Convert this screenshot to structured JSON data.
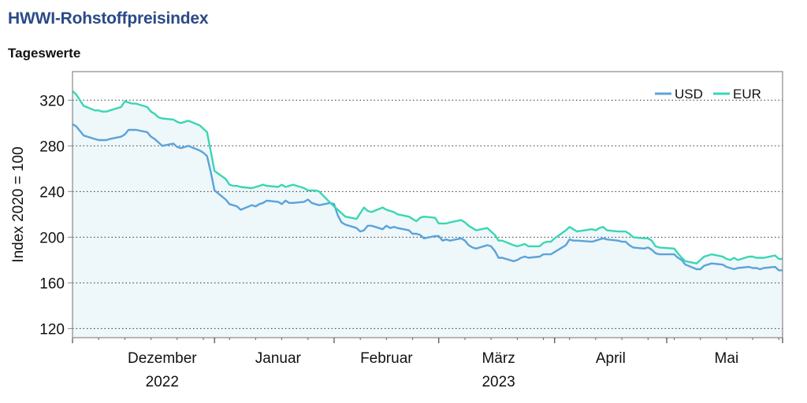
{
  "title": "HWWI-Rohstoffpreisindex",
  "subtitle": "Tageswerte",
  "colors": {
    "usd": "#5ba3d9",
    "eur": "#3ad6b3",
    "area": "#eef7fa",
    "grid": "#333333",
    "frame": "#888888"
  },
  "chart_data": {
    "type": "line",
    "ylabel": "Index 2020 = 100",
    "ylim": [
      112,
      345
    ],
    "yticks": [
      120,
      160,
      200,
      240,
      280,
      320
    ],
    "grid": "horizontal dotted",
    "legend_position": "top-right",
    "x_range": [
      "2022-11-22",
      "2023-05-31"
    ],
    "month_labels": [
      {
        "label": "Dezember",
        "center": "2022-12-16"
      },
      {
        "label": "Januar",
        "center": "2023-01-16"
      },
      {
        "label": "Februar",
        "center": "2023-02-14"
      },
      {
        "label": "März",
        "center": "2023-03-16"
      },
      {
        "label": "April",
        "center": "2023-04-15"
      },
      {
        "label": "Mai",
        "center": "2023-05-16"
      }
    ],
    "year_labels": [
      {
        "label": "2022",
        "center": "2022-12-16"
      },
      {
        "label": "2023",
        "center": "2023-03-16"
      }
    ],
    "tick_dates": [
      "2022-11-22",
      "2022-12-30",
      "2023-01-31",
      "2023-02-28",
      "2023-03-31",
      "2023-04-30",
      "2023-05-31"
    ],
    "series": [
      {
        "name": "USD",
        "points": [
          [
            "2022-11-22",
            299
          ],
          [
            "2022-11-23",
            297
          ],
          [
            "2022-11-24",
            293
          ],
          [
            "2022-11-25",
            289
          ],
          [
            "2022-11-28",
            286
          ],
          [
            "2022-11-29",
            285
          ],
          [
            "2022-11-30",
            285
          ],
          [
            "2022-12-01",
            285
          ],
          [
            "2022-12-02",
            286
          ],
          [
            "2022-12-05",
            288
          ],
          [
            "2022-12-06",
            290
          ],
          [
            "2022-12-07",
            294
          ],
          [
            "2022-12-08",
            294
          ],
          [
            "2022-12-09",
            294
          ],
          [
            "2022-12-12",
            292
          ],
          [
            "2022-12-13",
            288
          ],
          [
            "2022-12-14",
            286
          ],
          [
            "2022-12-15",
            283
          ],
          [
            "2022-12-16",
            280
          ],
          [
            "2022-12-19",
            282
          ],
          [
            "2022-12-20",
            279
          ],
          [
            "2022-12-21",
            278
          ],
          [
            "2022-12-22",
            279
          ],
          [
            "2022-12-23",
            280
          ],
          [
            "2022-12-26",
            276
          ],
          [
            "2022-12-27",
            274
          ],
          [
            "2022-12-28",
            271
          ],
          [
            "2022-12-29",
            257
          ],
          [
            "2022-12-30",
            241
          ],
          [
            "2023-01-02",
            233
          ],
          [
            "2023-01-03",
            229
          ],
          [
            "2023-01-04",
            228
          ],
          [
            "2023-01-05",
            227
          ],
          [
            "2023-01-06",
            224
          ],
          [
            "2023-01-09",
            228
          ],
          [
            "2023-01-10",
            227
          ],
          [
            "2023-01-11",
            229
          ],
          [
            "2023-01-12",
            230
          ],
          [
            "2023-01-13",
            232
          ],
          [
            "2023-01-16",
            231
          ],
          [
            "2023-01-17",
            229
          ],
          [
            "2023-01-18",
            232
          ],
          [
            "2023-01-19",
            230
          ],
          [
            "2023-01-20",
            230
          ],
          [
            "2023-01-23",
            231
          ],
          [
            "2023-01-24",
            233
          ],
          [
            "2023-01-25",
            230
          ],
          [
            "2023-01-26",
            229
          ],
          [
            "2023-01-27",
            228
          ],
          [
            "2023-01-30",
            230
          ],
          [
            "2023-01-31",
            229
          ],
          [
            "2023-02-01",
            219
          ],
          [
            "2023-02-02",
            213
          ],
          [
            "2023-02-03",
            211
          ],
          [
            "2023-02-06",
            208
          ],
          [
            "2023-02-07",
            205
          ],
          [
            "2023-02-08",
            206
          ],
          [
            "2023-02-09",
            210
          ],
          [
            "2023-02-10",
            210
          ],
          [
            "2023-02-13",
            207
          ],
          [
            "2023-02-14",
            210
          ],
          [
            "2023-02-15",
            208
          ],
          [
            "2023-02-16",
            209
          ],
          [
            "2023-02-17",
            208
          ],
          [
            "2023-02-20",
            206
          ],
          [
            "2023-02-21",
            203
          ],
          [
            "2023-02-22",
            203
          ],
          [
            "2023-02-23",
            202
          ],
          [
            "2023-02-24",
            199
          ],
          [
            "2023-02-27",
            201
          ],
          [
            "2023-02-28",
            201
          ],
          [
            "2023-03-01",
            197
          ],
          [
            "2023-03-02",
            198
          ],
          [
            "2023-03-03",
            197
          ],
          [
            "2023-03-06",
            199
          ],
          [
            "2023-03-07",
            197
          ],
          [
            "2023-03-08",
            193
          ],
          [
            "2023-03-09",
            191
          ],
          [
            "2023-03-10",
            190
          ],
          [
            "2023-03-13",
            193
          ],
          [
            "2023-03-14",
            192
          ],
          [
            "2023-03-15",
            188
          ],
          [
            "2023-03-16",
            182
          ],
          [
            "2023-03-17",
            182
          ],
          [
            "2023-03-20",
            179
          ],
          [
            "2023-03-21",
            180
          ],
          [
            "2023-03-22",
            182
          ],
          [
            "2023-03-23",
            183
          ],
          [
            "2023-03-24",
            182
          ],
          [
            "2023-03-27",
            183
          ],
          [
            "2023-03-28",
            185
          ],
          [
            "2023-03-29",
            185
          ],
          [
            "2023-03-30",
            185
          ],
          [
            "2023-03-31",
            187
          ],
          [
            "2023-04-03",
            193
          ],
          [
            "2023-04-04",
            198
          ],
          [
            "2023-04-05",
            197
          ],
          [
            "2023-04-06",
            197
          ],
          [
            "2023-04-10",
            196
          ],
          [
            "2023-04-11",
            197
          ],
          [
            "2023-04-12",
            198
          ],
          [
            "2023-04-13",
            199
          ],
          [
            "2023-04-14",
            198
          ],
          [
            "2023-04-17",
            197
          ],
          [
            "2023-04-18",
            196
          ],
          [
            "2023-04-19",
            196
          ],
          [
            "2023-04-20",
            193
          ],
          [
            "2023-04-21",
            191
          ],
          [
            "2023-04-24",
            190
          ],
          [
            "2023-04-25",
            191
          ],
          [
            "2023-04-26",
            189
          ],
          [
            "2023-04-27",
            186
          ],
          [
            "2023-04-28",
            185
          ],
          [
            "2023-05-02",
            185
          ],
          [
            "2023-05-03",
            182
          ],
          [
            "2023-05-04",
            180
          ],
          [
            "2023-05-05",
            176
          ],
          [
            "2023-05-08",
            172
          ],
          [
            "2023-05-09",
            172
          ],
          [
            "2023-05-10",
            175
          ],
          [
            "2023-05-11",
            176
          ],
          [
            "2023-05-12",
            177
          ],
          [
            "2023-05-15",
            176
          ],
          [
            "2023-05-16",
            174
          ],
          [
            "2023-05-17",
            173
          ],
          [
            "2023-05-18",
            172
          ],
          [
            "2023-05-19",
            173
          ],
          [
            "2023-05-22",
            174
          ],
          [
            "2023-05-23",
            173
          ],
          [
            "2023-05-24",
            173
          ],
          [
            "2023-05-25",
            172
          ],
          [
            "2023-05-26",
            173
          ],
          [
            "2023-05-29",
            174
          ],
          [
            "2023-05-30",
            171
          ],
          [
            "2023-05-31",
            171
          ]
        ]
      },
      {
        "name": "EUR",
        "points": [
          [
            "2022-11-22",
            328
          ],
          [
            "2022-11-23",
            325
          ],
          [
            "2022-11-24",
            320
          ],
          [
            "2022-11-25",
            315
          ],
          [
            "2022-11-28",
            311
          ],
          [
            "2022-11-29",
            311
          ],
          [
            "2022-11-30",
            310
          ],
          [
            "2022-12-01",
            310
          ],
          [
            "2022-12-02",
            311
          ],
          [
            "2022-12-05",
            314
          ],
          [
            "2022-12-06",
            319
          ],
          [
            "2022-12-07",
            318
          ],
          [
            "2022-12-08",
            317
          ],
          [
            "2022-12-09",
            317
          ],
          [
            "2022-12-12",
            314
          ],
          [
            "2022-12-13",
            310
          ],
          [
            "2022-12-14",
            308
          ],
          [
            "2022-12-15",
            305
          ],
          [
            "2022-12-16",
            304
          ],
          [
            "2022-12-19",
            303
          ],
          [
            "2022-12-20",
            301
          ],
          [
            "2022-12-21",
            300
          ],
          [
            "2022-12-22",
            301
          ],
          [
            "2022-12-23",
            302
          ],
          [
            "2022-12-26",
            298
          ],
          [
            "2022-12-27",
            295
          ],
          [
            "2022-12-28",
            292
          ],
          [
            "2022-12-29",
            275
          ],
          [
            "2022-12-30",
            258
          ],
          [
            "2023-01-02",
            251
          ],
          [
            "2023-01-03",
            246
          ],
          [
            "2023-01-04",
            245
          ],
          [
            "2023-01-05",
            245
          ],
          [
            "2023-01-06",
            244
          ],
          [
            "2023-01-09",
            243
          ],
          [
            "2023-01-10",
            244
          ],
          [
            "2023-01-11",
            245
          ],
          [
            "2023-01-12",
            246
          ],
          [
            "2023-01-13",
            245
          ],
          [
            "2023-01-16",
            244
          ],
          [
            "2023-01-17",
            246
          ],
          [
            "2023-01-18",
            244
          ],
          [
            "2023-01-19",
            245
          ],
          [
            "2023-01-20",
            246
          ],
          [
            "2023-01-23",
            243
          ],
          [
            "2023-01-24",
            241
          ],
          [
            "2023-01-25",
            241
          ],
          [
            "2023-01-26",
            241
          ],
          [
            "2023-01-27",
            240
          ],
          [
            "2023-01-30",
            230
          ],
          [
            "2023-01-31",
            227
          ],
          [
            "2023-02-01",
            224
          ],
          [
            "2023-02-02",
            221
          ],
          [
            "2023-02-03",
            218
          ],
          [
            "2023-02-06",
            216
          ],
          [
            "2023-02-07",
            221
          ],
          [
            "2023-02-08",
            226
          ],
          [
            "2023-02-09",
            223
          ],
          [
            "2023-02-10",
            222
          ],
          [
            "2023-02-13",
            226
          ],
          [
            "2023-02-14",
            224
          ],
          [
            "2023-02-15",
            223
          ],
          [
            "2023-02-16",
            222
          ],
          [
            "2023-02-17",
            220
          ],
          [
            "2023-02-20",
            218
          ],
          [
            "2023-02-21",
            216
          ],
          [
            "2023-02-22",
            214
          ],
          [
            "2023-02-23",
            217
          ],
          [
            "2023-02-24",
            218
          ],
          [
            "2023-02-27",
            217
          ],
          [
            "2023-02-28",
            212
          ],
          [
            "2023-03-01",
            212
          ],
          [
            "2023-03-02",
            212
          ],
          [
            "2023-03-03",
            213
          ],
          [
            "2023-03-06",
            215
          ],
          [
            "2023-03-07",
            213
          ],
          [
            "2023-03-08",
            210
          ],
          [
            "2023-03-09",
            208
          ],
          [
            "2023-03-10",
            206
          ],
          [
            "2023-03-13",
            208
          ],
          [
            "2023-03-14",
            205
          ],
          [
            "2023-03-15",
            202
          ],
          [
            "2023-03-16",
            197
          ],
          [
            "2023-03-17",
            197
          ],
          [
            "2023-03-20",
            193
          ],
          [
            "2023-03-21",
            192
          ],
          [
            "2023-03-22",
            193
          ],
          [
            "2023-03-23",
            194
          ],
          [
            "2023-03-24",
            192
          ],
          [
            "2023-03-27",
            192
          ],
          [
            "2023-03-28",
            195
          ],
          [
            "2023-03-29",
            196
          ],
          [
            "2023-03-30",
            196
          ],
          [
            "2023-03-31",
            199
          ],
          [
            "2023-04-03",
            206
          ],
          [
            "2023-04-04",
            209
          ],
          [
            "2023-04-05",
            207
          ],
          [
            "2023-04-06",
            205
          ],
          [
            "2023-04-10",
            207
          ],
          [
            "2023-04-11",
            206
          ],
          [
            "2023-04-12",
            208
          ],
          [
            "2023-04-13",
            209
          ],
          [
            "2023-04-14",
            206
          ],
          [
            "2023-04-17",
            205
          ],
          [
            "2023-04-18",
            205
          ],
          [
            "2023-04-19",
            205
          ],
          [
            "2023-04-20",
            203
          ],
          [
            "2023-04-21",
            200
          ],
          [
            "2023-04-24",
            199
          ],
          [
            "2023-04-25",
            199
          ],
          [
            "2023-04-26",
            197
          ],
          [
            "2023-04-27",
            192
          ],
          [
            "2023-04-28",
            191
          ],
          [
            "2023-05-02",
            190
          ],
          [
            "2023-05-03",
            186
          ],
          [
            "2023-05-04",
            182
          ],
          [
            "2023-05-05",
            179
          ],
          [
            "2023-05-08",
            177
          ],
          [
            "2023-05-09",
            180
          ],
          [
            "2023-05-10",
            183
          ],
          [
            "2023-05-11",
            184
          ],
          [
            "2023-05-12",
            185
          ],
          [
            "2023-05-15",
            183
          ],
          [
            "2023-05-16",
            181
          ],
          [
            "2023-05-17",
            180
          ],
          [
            "2023-05-18",
            182
          ],
          [
            "2023-05-19",
            180
          ],
          [
            "2023-05-22",
            183
          ],
          [
            "2023-05-23",
            183
          ],
          [
            "2023-05-24",
            182
          ],
          [
            "2023-05-25",
            182
          ],
          [
            "2023-05-26",
            182
          ],
          [
            "2023-05-29",
            184
          ],
          [
            "2023-05-30",
            181
          ],
          [
            "2023-05-31",
            181
          ]
        ]
      }
    ]
  }
}
